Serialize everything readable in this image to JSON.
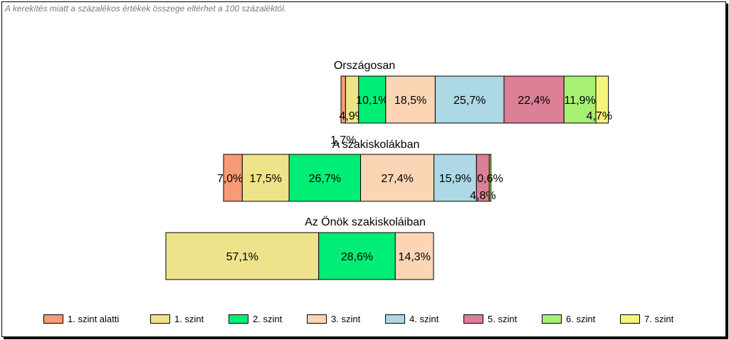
{
  "note": "A kerekítés miatt a  százalékos értékek összege eltérhet a 100 százaléktól.",
  "chart_data": {
    "type": "bar",
    "orientation": "horizontal-stacked",
    "groups": [
      "Országosan",
      "A szakiskolákban",
      "Az Önök szakiskoláiban"
    ],
    "series": [
      {
        "name": "1. szint alatti",
        "color": "#F79A76",
        "values": [
          1.7,
          7.0,
          0
        ]
      },
      {
        "name": "1. szint",
        "color": "#EEE38B",
        "values": [
          4.9,
          17.5,
          57.1
        ]
      },
      {
        "name": "2. szint",
        "color": "#00EE76",
        "values": [
          10.1,
          26.7,
          28.6
        ]
      },
      {
        "name": "3. szint",
        "color": "#FCD5B5",
        "values": [
          18.5,
          27.4,
          14.3
        ]
      },
      {
        "name": "4. szint",
        "color": "#ADD8E6",
        "values": [
          25.7,
          15.9,
          0
        ]
      },
      {
        "name": "5. szint",
        "color": "#DB8096",
        "values": [
          22.4,
          4.8,
          0
        ]
      },
      {
        "name": "6. szint",
        "color": "#A6F073",
        "values": [
          11.9,
          0.6,
          0
        ]
      },
      {
        "name": "7. szint",
        "color": "#F5F57A",
        "values": [
          4.7,
          0,
          0
        ]
      }
    ],
    "labels": [
      [
        "1,7%",
        "4,9%",
        "10,1%",
        "18,5%",
        "25,7%",
        "22,4%",
        "11,9%",
        "4,7%"
      ],
      [
        "7,0%",
        "17,5%",
        "26,7%",
        "27,4%",
        "15,9%",
        "4,8%",
        "0,6%",
        ""
      ],
      [
        "",
        "57,1%",
        "28,6%",
        "14,3%",
        "",
        "",
        "",
        ""
      ]
    ],
    "legend_position": "bottom",
    "grid": false
  }
}
